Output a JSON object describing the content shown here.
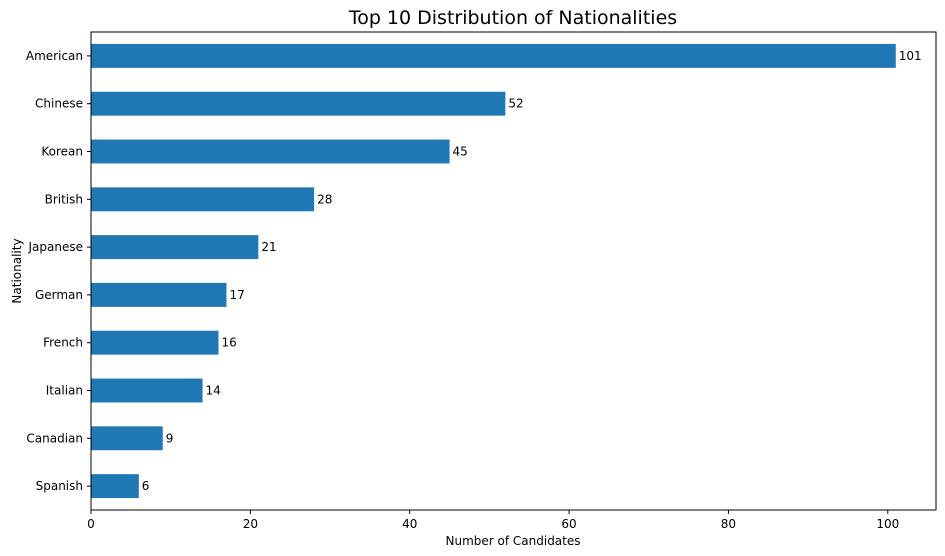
{
  "chart_data": {
    "type": "bar",
    "orientation": "horizontal",
    "title": "Top 10 Distribution of Nationalities",
    "xlabel": "Number of Candidates",
    "ylabel": "Nationality",
    "categories": [
      "American",
      "Chinese",
      "Korean",
      "British",
      "Japanese",
      "German",
      "French",
      "Italian",
      "Canadian",
      "Spanish"
    ],
    "values": [
      101,
      52,
      45,
      28,
      21,
      17,
      16,
      14,
      9,
      6
    ],
    "xlim": [
      0,
      106.05
    ],
    "xticks": [
      0,
      20,
      40,
      60,
      80,
      100
    ],
    "grid": false,
    "legend": "none",
    "bar_color": "#1f77b4"
  }
}
